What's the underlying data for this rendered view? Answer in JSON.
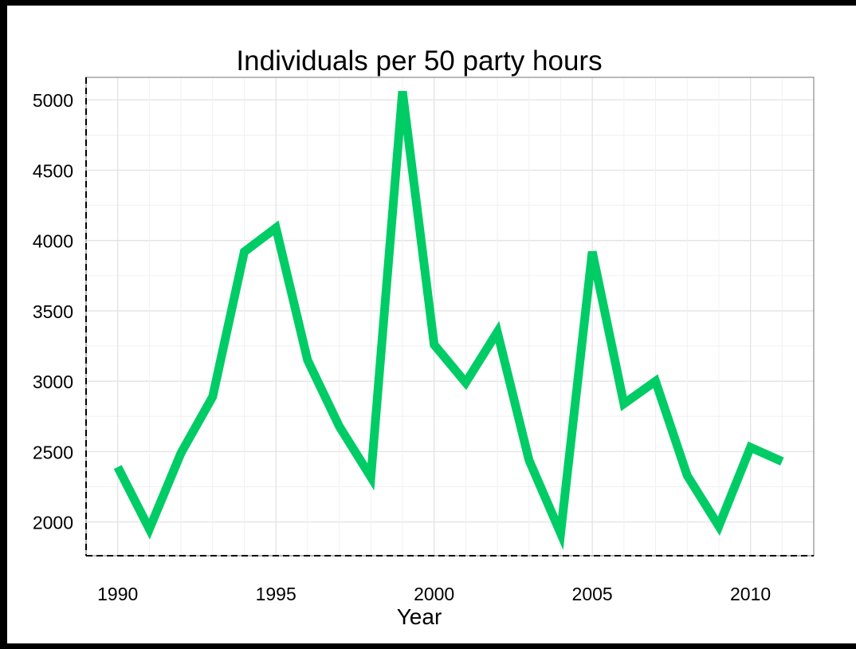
{
  "chart_data": {
    "type": "line",
    "title": "Individuals per 50 party hours",
    "xlabel": "Year",
    "ylabel": "",
    "xlim": [
      1989,
      2012
    ],
    "ylim": [
      1760,
      5160
    ],
    "xticks": [
      1990,
      1995,
      2000,
      2005,
      2010
    ],
    "yticks": [
      2000,
      2500,
      3000,
      3500,
      4000,
      4500,
      5000
    ],
    "grid": true,
    "line_color": "#00cc66",
    "series": [
      {
        "x": [
          1990,
          1991,
          1992,
          1993,
          1994,
          1995,
          1996,
          1997,
          1998,
          1999,
          2000,
          2001,
          2002,
          2003,
          2004,
          2005,
          2006,
          2007,
          2008,
          2009,
          2010,
          2011
        ],
        "y": [
          2390,
          1950,
          2490,
          2890,
          3920,
          4090,
          3150,
          2680,
          2320,
          5060,
          3260,
          2990,
          3350,
          2440,
          1920,
          3920,
          2840,
          3000,
          2330,
          1970,
          2530,
          2430
        ]
      }
    ]
  }
}
